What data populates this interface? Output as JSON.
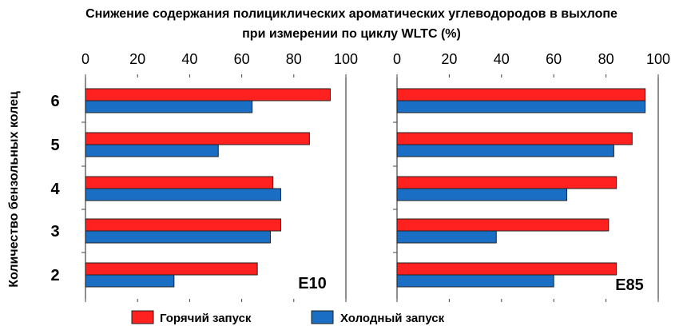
{
  "chart_data": {
    "type": "bar",
    "orientation": "horizontal",
    "title": "Снижение содержания полициклических ароматических углеводородов в выхлопе",
    "subtitle": "при измерении по циклу WLTC (%)",
    "ylabel": "Количество бензольных колец",
    "xlim": [
      0,
      100
    ],
    "xticks": [
      "0",
      "20",
      "40",
      "60",
      "80",
      "100"
    ],
    "categories": [
      "6",
      "5",
      "4",
      "3",
      "2"
    ],
    "legend": {
      "position": "bottom",
      "entries": [
        {
          "name": "Горячий запуск",
          "color": "#ff2020"
        },
        {
          "name": "Холодный запуск",
          "color": "#1a6fc4"
        }
      ]
    },
    "panels": [
      {
        "label": "E10",
        "series": [
          {
            "name": "Горячий запуск",
            "values": [
              94,
              86,
              72,
              75,
              66
            ]
          },
          {
            "name": "Холодный запуск",
            "values": [
              64,
              51,
              75,
              71,
              34
            ]
          }
        ]
      },
      {
        "label": "E85",
        "series": [
          {
            "name": "Горячий запуск",
            "values": [
              95,
              90,
              84,
              81,
              84
            ]
          },
          {
            "name": "Холодный запуск",
            "values": [
              95,
              83,
              65,
              38,
              60
            ]
          }
        ]
      }
    ]
  }
}
